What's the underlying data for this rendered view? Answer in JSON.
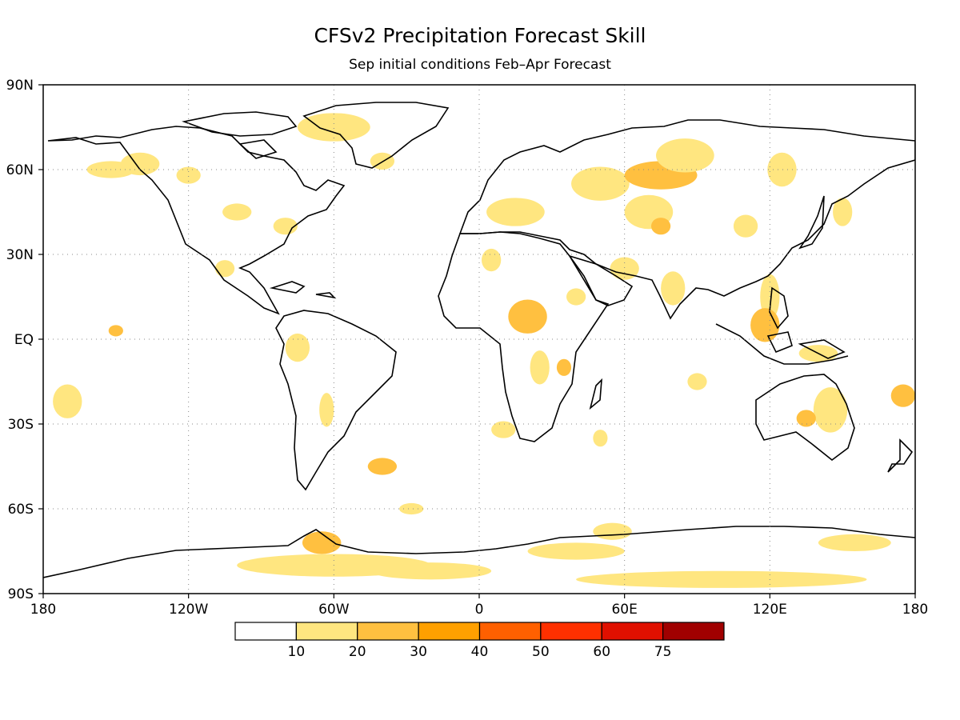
{
  "title": "CFSv2 Precipitation Forecast Skill",
  "subtitle": "Sep initial conditions  Feb–Apr Forecast",
  "map": {
    "lon_ticks": [
      "180",
      "120W",
      "60W",
      "0",
      "60E",
      "120E",
      "180"
    ],
    "lat_ticks": [
      "90N",
      "60N",
      "30N",
      "EQ",
      "30S",
      "60S",
      "90S"
    ],
    "gridlines": "dotted",
    "coastline_color": "#000000"
  },
  "colorbar": {
    "colors": [
      "#ffffff",
      "#ffe680",
      "#ffc040",
      "#ffa000",
      "#ff6000",
      "#ff3000",
      "#e01000",
      "#a00000"
    ],
    "tick_labels": [
      "10",
      "20",
      "30",
      "40",
      "50",
      "60",
      "75"
    ]
  },
  "chart_data": {
    "type": "heatmap",
    "title": "CFSv2 Precipitation Forecast Skill",
    "subtitle": "Sep initial conditions  Feb–Apr Forecast",
    "xlabel": "",
    "ylabel": "",
    "x_ticks": [
      "180",
      "120W",
      "60W",
      "0",
      "60E",
      "120E",
      "180"
    ],
    "y_ticks": [
      "90N",
      "60N",
      "30N",
      "EQ",
      "30S",
      "60S",
      "90S"
    ],
    "xlim": [
      -180,
      180
    ],
    "ylim": [
      -90,
      90
    ],
    "levels": [
      10,
      20,
      30,
      40,
      50,
      60,
      75
    ],
    "level_colors": [
      "#ffffff",
      "#ffe680",
      "#ffc040",
      "#ffa000",
      "#ff6000",
      "#ff3000",
      "#e01000",
      "#a00000"
    ],
    "skill_patches": [
      {
        "lon": -140,
        "lat": 62,
        "rx": 8,
        "ry": 4,
        "value": 12
      },
      {
        "lon": -152,
        "lat": 60,
        "rx": 10,
        "ry": 3,
        "value": 15
      },
      {
        "lon": -120,
        "lat": 58,
        "rx": 5,
        "ry": 3,
        "value": 12
      },
      {
        "lon": -100,
        "lat": 45,
        "rx": 6,
        "ry": 3,
        "value": 15
      },
      {
        "lon": -105,
        "lat": 25,
        "rx": 4,
        "ry": 3,
        "value": 15
      },
      {
        "lon": -80,
        "lat": 40,
        "rx": 5,
        "ry": 3,
        "value": 12
      },
      {
        "lon": -60,
        "lat": 75,
        "rx": 15,
        "ry": 5,
        "value": 12
      },
      {
        "lon": -40,
        "lat": 63,
        "rx": 5,
        "ry": 3,
        "value": 12
      },
      {
        "lon": -150,
        "lat": 3,
        "rx": 3,
        "ry": 2,
        "value": 25
      },
      {
        "lon": -170,
        "lat": -22,
        "rx": 6,
        "ry": 6,
        "value": 12
      },
      {
        "lon": -75,
        "lat": -3,
        "rx": 5,
        "ry": 5,
        "value": 12
      },
      {
        "lon": -63,
        "lat": -25,
        "rx": 3,
        "ry": 6,
        "value": 15
      },
      {
        "lon": -40,
        "lat": -45,
        "rx": 6,
        "ry": 3,
        "value": 25
      },
      {
        "lon": -28,
        "lat": -60,
        "rx": 5,
        "ry": 2,
        "value": 15
      },
      {
        "lon": 5,
        "lat": 28,
        "rx": 4,
        "ry": 4,
        "value": 12
      },
      {
        "lon": 15,
        "lat": 45,
        "rx": 12,
        "ry": 5,
        "value": 15
      },
      {
        "lon": 20,
        "lat": 8,
        "rx": 8,
        "ry": 6,
        "value": 25
      },
      {
        "lon": 25,
        "lat": -10,
        "rx": 4,
        "ry": 6,
        "value": 15
      },
      {
        "lon": 35,
        "lat": -10,
        "rx": 3,
        "ry": 3,
        "value": 25
      },
      {
        "lon": 10,
        "lat": -32,
        "rx": 5,
        "ry": 3,
        "value": 15
      },
      {
        "lon": 40,
        "lat": 15,
        "rx": 4,
        "ry": 3,
        "value": 15
      },
      {
        "lon": 50,
        "lat": -35,
        "rx": 3,
        "ry": 3,
        "value": 12
      },
      {
        "lon": 50,
        "lat": 55,
        "rx": 12,
        "ry": 6,
        "value": 15
      },
      {
        "lon": 75,
        "lat": 58,
        "rx": 15,
        "ry": 5,
        "value": 25
      },
      {
        "lon": 85,
        "lat": 65,
        "rx": 12,
        "ry": 6,
        "value": 15
      },
      {
        "lon": 70,
        "lat": 45,
        "rx": 10,
        "ry": 6,
        "value": 15
      },
      {
        "lon": 75,
        "lat": 40,
        "rx": 4,
        "ry": 3,
        "value": 25
      },
      {
        "lon": 60,
        "lat": 25,
        "rx": 6,
        "ry": 4,
        "value": 12
      },
      {
        "lon": 80,
        "lat": 18,
        "rx": 5,
        "ry": 6,
        "value": 15
      },
      {
        "lon": 110,
        "lat": 40,
        "rx": 5,
        "ry": 4,
        "value": 12
      },
      {
        "lon": 125,
        "lat": 60,
        "rx": 6,
        "ry": 6,
        "value": 12
      },
      {
        "lon": 150,
        "lat": 45,
        "rx": 4,
        "ry": 5,
        "value": 12
      },
      {
        "lon": 120,
        "lat": 15,
        "rx": 4,
        "ry": 8,
        "value": 15
      },
      {
        "lon": 118,
        "lat": 5,
        "rx": 6,
        "ry": 6,
        "value": 25
      },
      {
        "lon": 140,
        "lat": -5,
        "rx": 8,
        "ry": 3,
        "value": 12
      },
      {
        "lon": 145,
        "lat": -25,
        "rx": 7,
        "ry": 8,
        "value": 15
      },
      {
        "lon": 135,
        "lat": -28,
        "rx": 4,
        "ry": 3,
        "value": 25
      },
      {
        "lon": 175,
        "lat": -20,
        "rx": 5,
        "ry": 4,
        "value": 25
      },
      {
        "lon": 90,
        "lat": -15,
        "rx": 4,
        "ry": 3,
        "value": 12
      },
      {
        "lon": -60,
        "lat": -80,
        "rx": 40,
        "ry": 4,
        "value": 15
      },
      {
        "lon": -65,
        "lat": -72,
        "rx": 8,
        "ry": 4,
        "value": 25
      },
      {
        "lon": -20,
        "lat": -82,
        "rx": 25,
        "ry": 3,
        "value": 15
      },
      {
        "lon": 55,
        "lat": -68,
        "rx": 8,
        "ry": 3,
        "value": 15
      },
      {
        "lon": 100,
        "lat": -85,
        "rx": 60,
        "ry": 3,
        "value": 12
      },
      {
        "lon": 155,
        "lat": -72,
        "rx": 15,
        "ry": 3,
        "value": 15
      },
      {
        "lon": 40,
        "lat": -75,
        "rx": 20,
        "ry": 3,
        "value": 12
      }
    ]
  }
}
